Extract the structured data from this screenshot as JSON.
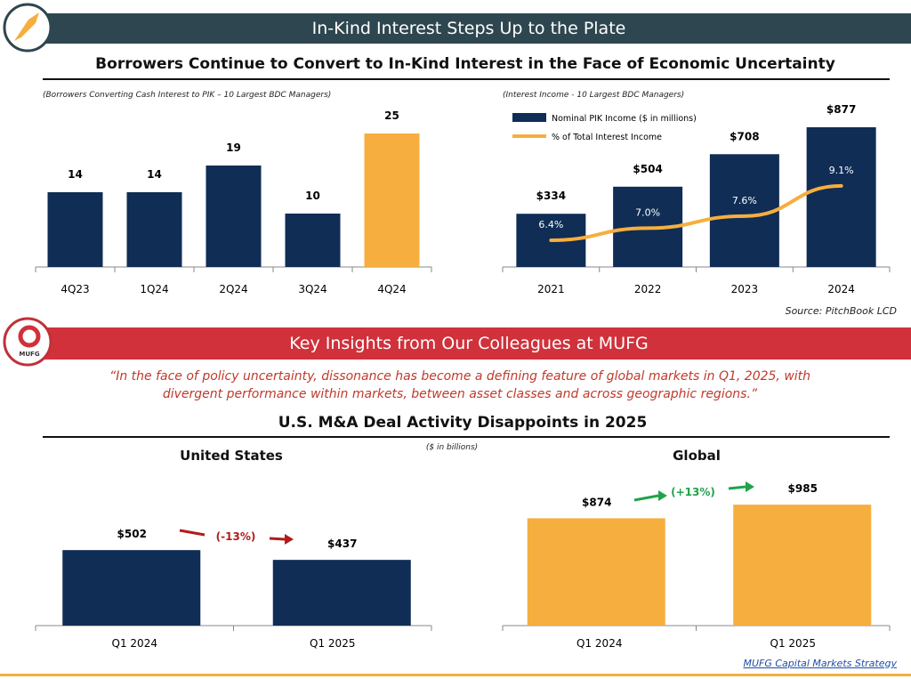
{
  "header": {
    "title": "In-Kind Interest Steps Up to the Plate",
    "subtitle": "Borrowers Continue to Convert to In-Kind Interest in the Face of Economic Uncertainty",
    "color": "#2e464f"
  },
  "mufg": {
    "title": "Key Insights from Our Colleagues at MUFG",
    "logo_text": "MUFG",
    "color": "#d0313b",
    "quote_line1": "“In the face of policy uncertainty, dissonance has become a defining feature of global markets in Q1, 2025, with",
    "quote_line2": "divergent performance within markets, between asset classes and across geographic regions.”",
    "section_title": "U.S. M&A Deal Activity Disappoints in 2025",
    "units": "($ in billions)"
  },
  "source": "Source: PitchBook LCD",
  "footer_link": "MUFG Capital Markets Strategy",
  "chart_data": [
    {
      "type": "bar",
      "title": "(Borrowers Converting Cash Interest to PIK – 10 Largest BDC Managers)",
      "categories": [
        "4Q23",
        "1Q24",
        "2Q24",
        "3Q24",
        "4Q24"
      ],
      "values": [
        14,
        14,
        19,
        10,
        25
      ],
      "colors": [
        "#0f2d55",
        "#0f2d55",
        "#0f2d55",
        "#0f2d55",
        "#f6ae3f"
      ],
      "labels": [
        "14",
        "14",
        "19",
        "10",
        "25"
      ]
    },
    {
      "type": "bar+line",
      "title": "(Interest Income - 10 Largest BDC Managers)",
      "categories": [
        "2021",
        "2022",
        "2023",
        "2024"
      ],
      "series": [
        {
          "name": "Nominal PIK Income ($ in millions)",
          "type": "bar",
          "values": [
            334,
            504,
            708,
            877
          ],
          "labels": [
            "$334",
            "$504",
            "$708",
            "$877"
          ],
          "color": "#0f2d55"
        },
        {
          "name": "% of Total Interest Income",
          "type": "line",
          "values": [
            6.4,
            7.0,
            7.6,
            9.1
          ],
          "labels": [
            "6.4%",
            "7.0%",
            "7.6%",
            "9.1%"
          ],
          "color": "#f6ae3f"
        }
      ]
    },
    {
      "type": "bar",
      "title": "United States",
      "categories": [
        "Q1 2024",
        "Q1 2025"
      ],
      "values": [
        502,
        437
      ],
      "labels": [
        "$502",
        "$437"
      ],
      "color": "#0f2d55",
      "change": "(-13%)",
      "change_color": "#b01c1c"
    },
    {
      "type": "bar",
      "title": "Global",
      "categories": [
        "Q1 2024",
        "Q1 2025"
      ],
      "values": [
        874,
        985
      ],
      "labels": [
        "$874",
        "$985"
      ],
      "color": "#f6ae3f",
      "change": "(+13%)",
      "change_color": "#1fa34a"
    }
  ]
}
